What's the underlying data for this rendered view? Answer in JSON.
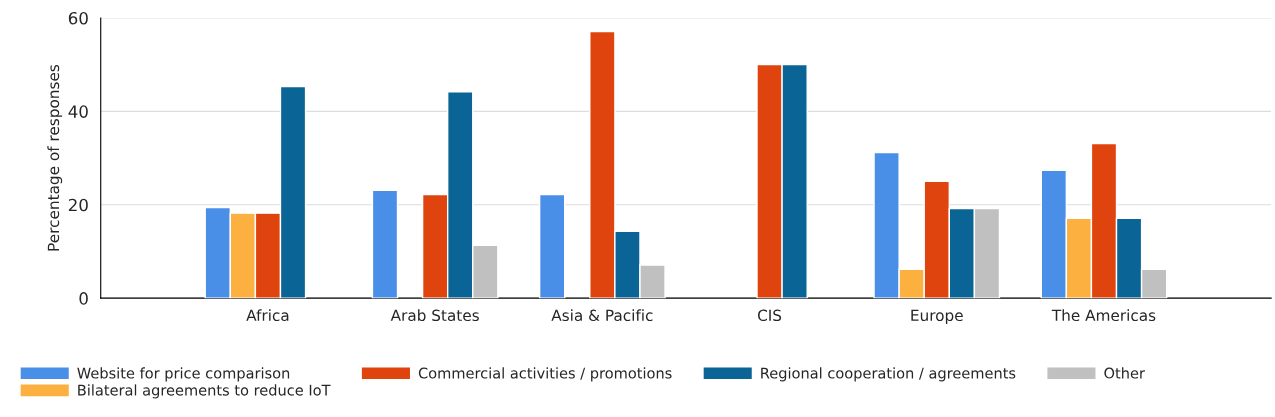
{
  "chart_data": {
    "type": "bar",
    "ylabel": "Percentage of responses",
    "categories": [
      "Africa",
      "Arab States",
      "Asia & Pacific",
      "CIS",
      "Europe",
      "The Americas"
    ],
    "series": [
      {
        "name": "Website for price comparison",
        "color": "#4a8fe7",
        "values": [
          19.4,
          23.1,
          22.2,
          null,
          31.2,
          27.4
        ]
      },
      {
        "name": "Bilateral agreements to reduce IoT",
        "color": "#fbb040",
        "values": [
          18.2,
          null,
          null,
          null,
          6.2,
          17.1
        ]
      },
      {
        "name": "Commercial activities / promotions",
        "color": "#e0440e",
        "values": [
          18.2,
          22.2,
          57.1,
          50.0,
          25.0,
          33.1
        ]
      },
      {
        "name": "Regional cooperation / agreements",
        "color": "#0b6496",
        "values": [
          45.3,
          44.2,
          14.3,
          50.0,
          19.2,
          17.1
        ]
      },
      {
        "name": "Other",
        "color": "#c0c0c0",
        "values": [
          null,
          11.3,
          7.1,
          null,
          19.2,
          6.2
        ]
      }
    ],
    "ylim": [
      0,
      60
    ],
    "yticks": [
      0,
      20,
      40,
      60
    ],
    "grid": "y",
    "legend": "bottom"
  }
}
